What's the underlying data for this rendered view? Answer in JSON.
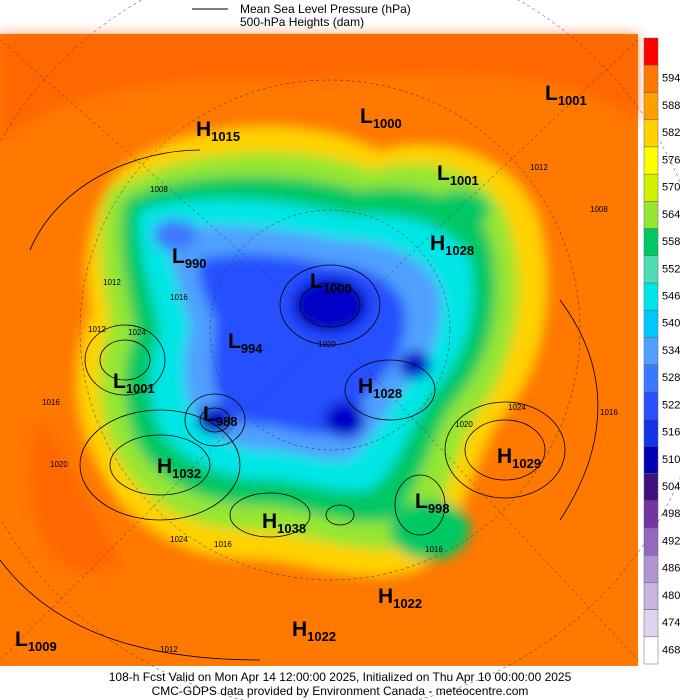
{
  "legend": [
    "Mean Sea Level Pressure (hPa)",
    "500-hPa Heights (dam)"
  ],
  "centers": [
    {
      "kind": "H",
      "value": "1015"
    },
    {
      "kind": "L",
      "value": "1000"
    },
    {
      "kind": "L",
      "value": "1001"
    },
    {
      "kind": "L",
      "value": "1001"
    },
    {
      "kind": "H",
      "value": "1028"
    },
    {
      "kind": "L",
      "value": "990"
    },
    {
      "kind": "L",
      "value": "1000"
    },
    {
      "kind": "L",
      "value": "994"
    },
    {
      "kind": "L",
      "value": "1001"
    },
    {
      "kind": "H",
      "value": "1028"
    },
    {
      "kind": "L",
      "value": "988"
    },
    {
      "kind": "H",
      "value": "1032"
    },
    {
      "kind": "H",
      "value": "1029"
    },
    {
      "kind": "L",
      "value": "998"
    },
    {
      "kind": "H",
      "value": "1038"
    },
    {
      "kind": "H",
      "value": "1022"
    },
    {
      "kind": "H",
      "value": "1022"
    },
    {
      "kind": "L",
      "value": "1009"
    }
  ],
  "isobar_labels": [
    "1008",
    "1012",
    "1016",
    "1024",
    "1012",
    "1016",
    "1020",
    "1024",
    "1016",
    "1012",
    "1008",
    "1016",
    "1024",
    "1020",
    "1016",
    "1012",
    "1020"
  ],
  "colorbar": {
    "ticks": [
      468,
      474,
      480,
      486,
      492,
      498,
      504,
      510,
      516,
      522,
      528,
      534,
      540,
      546,
      552,
      558,
      564,
      570,
      576,
      582,
      588,
      594
    ],
    "colors": [
      "#ffffff",
      "#e0d4f0",
      "#c8b4e0",
      "#b094d0",
      "#9468c0",
      "#7434a4",
      "#40107c",
      "#0000b4",
      "#1432e6",
      "#2850ff",
      "#3c78ff",
      "#50a0ff",
      "#00c8ff",
      "#00e6e6",
      "#50dcb4",
      "#00c864",
      "#96e632",
      "#d2f000",
      "#ffff00",
      "#ffd200",
      "#ffa000",
      "#ff7800",
      "#ff0000"
    ]
  },
  "footer": [
    "108-h Fcst Valid on Mon Apr 14 12:00:00 2025, Initialized on Thu Apr 10 00:00:00 2025",
    "CMC-GDPS data provided by Environment Canada - meteocentre.com"
  ]
}
